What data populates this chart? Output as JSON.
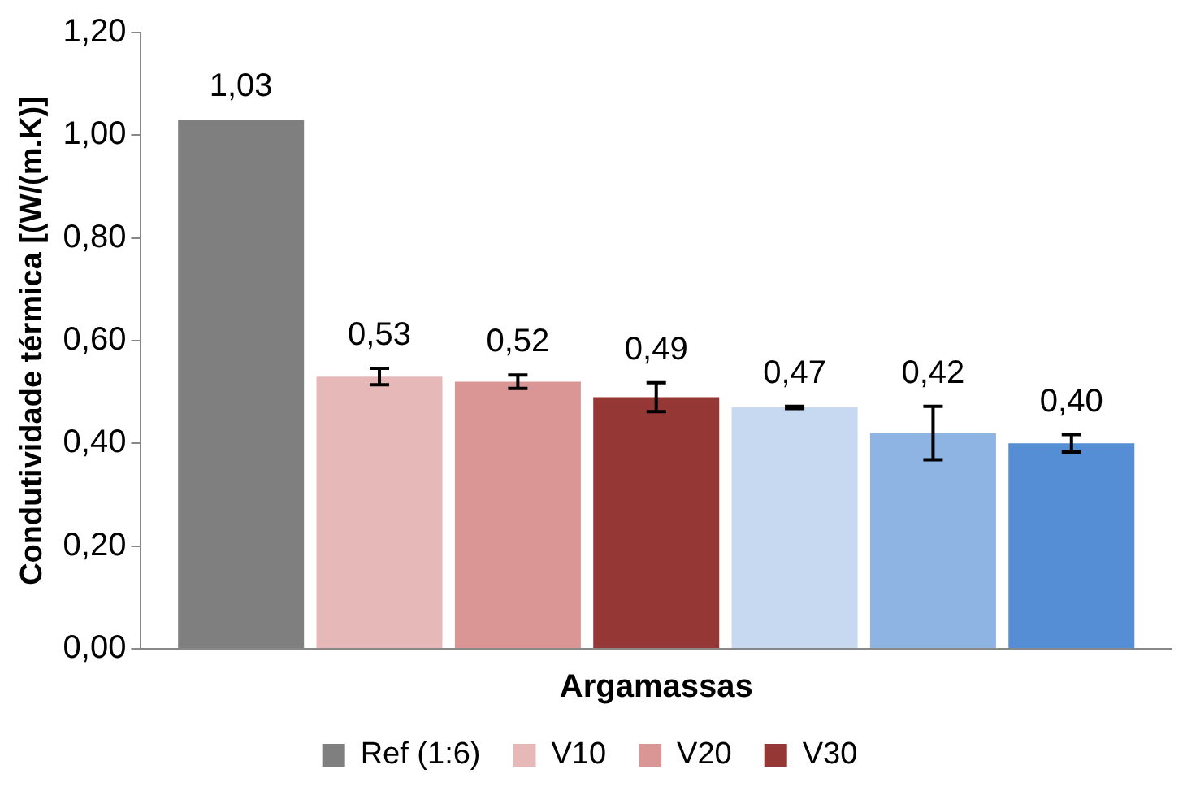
{
  "chart_data": {
    "type": "bar",
    "xlabel": "Argamassas",
    "ylabel": "Condutividade térmica [(W/(m.K)]",
    "categories": [
      null
    ],
    "series": [
      {
        "name": "Ref (1:6)",
        "color": "#7f7f7f",
        "values": [
          1.03
        ],
        "value_labels": [
          "1,03"
        ]
      },
      {
        "name": "V10",
        "color": "#e6b9b8",
        "values": [
          0.53
        ],
        "errors": [
          0.016
        ],
        "value_labels": [
          "0,53"
        ]
      },
      {
        "name": "V20",
        "color": "#d99694",
        "values": [
          0.52
        ],
        "errors": [
          0.013
        ],
        "value_labels": [
          "0,52"
        ]
      },
      {
        "name": "V30",
        "color": "#953735",
        "values": [
          0.49
        ],
        "errors": [
          0.028
        ],
        "value_labels": [
          "0,49"
        ]
      },
      {
        "color": "#c6d9f1",
        "values": [
          0.47
        ],
        "errors": [
          0.002
        ],
        "value_labels": [
          "0,47"
        ]
      },
      {
        "color": "#8eb4e3",
        "values": [
          0.42
        ],
        "errors": [
          0.052
        ],
        "value_labels": [
          "0,42"
        ]
      },
      {
        "color": "#558ed5",
        "values": [
          0.4
        ],
        "errors": [
          0.017
        ],
        "value_labels": [
          "0,40"
        ]
      }
    ],
    "ylim": [
      0,
      1.2
    ],
    "yticks": [
      {
        "value": 0,
        "label": "0,00"
      },
      {
        "value": 0.2,
        "label": "0,20"
      },
      {
        "value": 0.4,
        "label": "0,40"
      },
      {
        "value": 0.6,
        "label": "0,60"
      },
      {
        "value": 0.8,
        "label": "0,80"
      },
      {
        "value": 1,
        "label": "1,00"
      },
      {
        "value": 1.2,
        "label": "1,20"
      }
    ],
    "grid": false,
    "legend": "bottom"
  }
}
